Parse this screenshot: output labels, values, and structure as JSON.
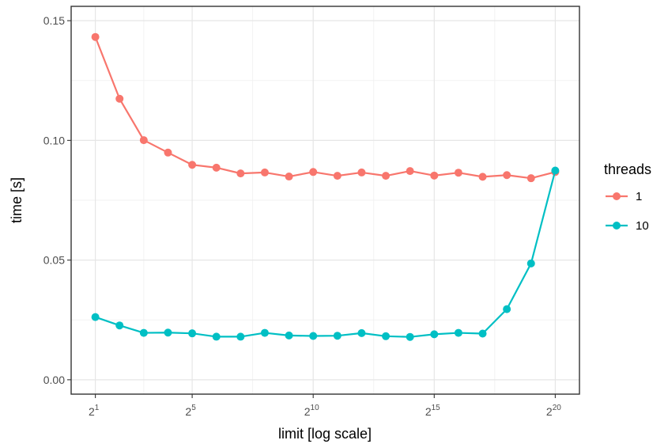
{
  "chart_data": {
    "type": "line",
    "xlabel": "limit [log scale]",
    "ylabel": "time [s]",
    "x_scale": "log2",
    "x_base_label": "2",
    "x_tick_exponents": [
      "1",
      "5",
      "10",
      "15",
      "20"
    ],
    "y_tick_labels": [
      "0.00",
      "0.05",
      "0.10",
      "0.15"
    ],
    "xlim_exponent": [
      0.0,
      21.0
    ],
    "ylim": [
      -0.006,
      0.156
    ],
    "grid": true,
    "legend": {
      "title": "threads",
      "position": "right"
    },
    "x_exponents": [
      1,
      2,
      3,
      4,
      5,
      6,
      7,
      8,
      9,
      10,
      11,
      12,
      13,
      14,
      15,
      16,
      17,
      18,
      19,
      20
    ],
    "series": [
      {
        "name": "1",
        "color": "#F8766D",
        "values": [
          0.1432,
          0.1174,
          0.1001,
          0.0949,
          0.0898,
          0.0886,
          0.0862,
          0.0866,
          0.0849,
          0.0868,
          0.0852,
          0.0866,
          0.0852,
          0.0872,
          0.0853,
          0.0865,
          0.0848,
          0.0855,
          0.0842,
          0.0868
        ]
      },
      {
        "name": "10",
        "color": "#00BFC4",
        "values": [
          0.0262,
          0.0227,
          0.0196,
          0.0197,
          0.0194,
          0.018,
          0.018,
          0.0196,
          0.0185,
          0.0183,
          0.0184,
          0.0195,
          0.0182,
          0.0179,
          0.019,
          0.0196,
          0.0193,
          0.0295,
          0.0486,
          0.0874
        ]
      }
    ]
  }
}
